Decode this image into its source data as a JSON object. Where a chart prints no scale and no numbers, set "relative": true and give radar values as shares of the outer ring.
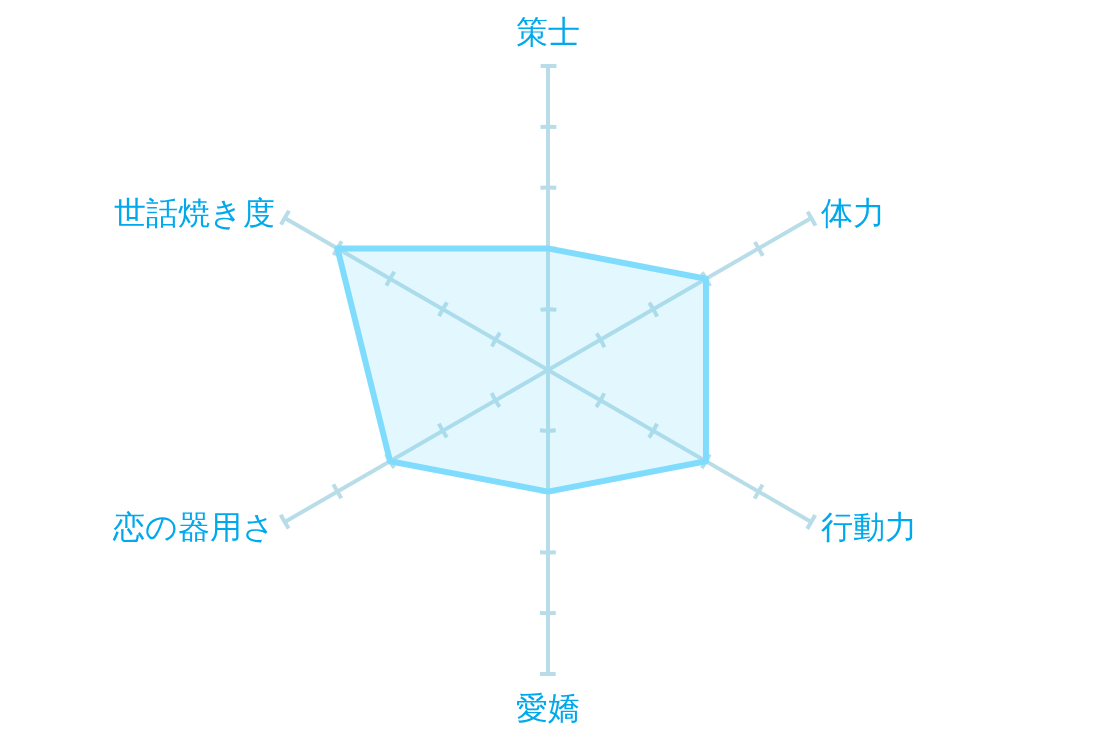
{
  "chart_data": {
    "type": "radar",
    "relative": true,
    "categories": [
      "策士",
      "体力",
      "行動力",
      "愛嬌",
      "恋の器用さ",
      "世話焼き度"
    ],
    "series": [
      {
        "color": "#80dcfc",
        "values": [
          0.4,
          0.6,
          0.6,
          0.4,
          0.6,
          0.8
        ]
      }
    ]
  }
}
